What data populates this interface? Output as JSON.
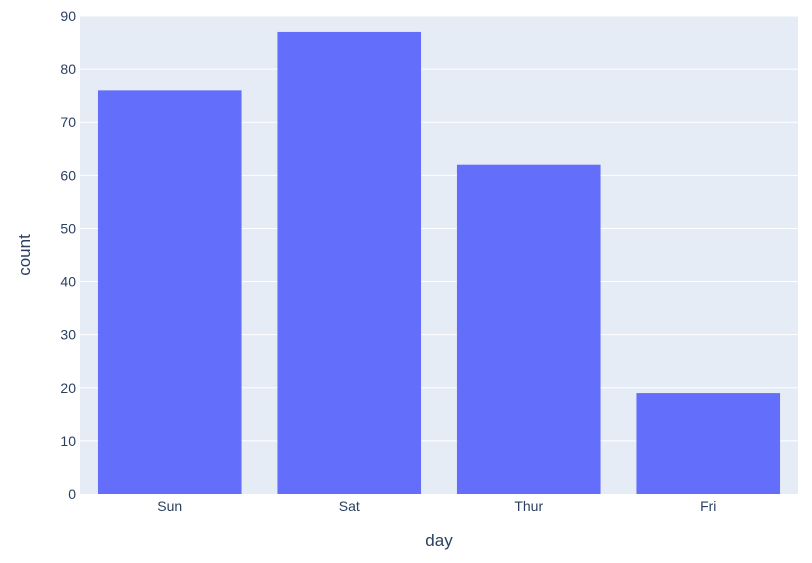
{
  "chart_data": {
    "type": "bar",
    "categories": [
      "Sun",
      "Sat",
      "Thur",
      "Fri"
    ],
    "values": [
      76,
      87,
      62,
      19
    ],
    "title": "",
    "xlabel": "day",
    "ylabel": "count",
    "ylim": [
      0,
      90
    ],
    "yticks": [
      0,
      10,
      20,
      30,
      40,
      50,
      60,
      70,
      80,
      90
    ],
    "grid": true,
    "legend": "none"
  },
  "colors": {
    "bar": "#636efa",
    "plot_background": "#e5ecf6",
    "grid": "#ffffff",
    "text": "#2a3f5f"
  }
}
